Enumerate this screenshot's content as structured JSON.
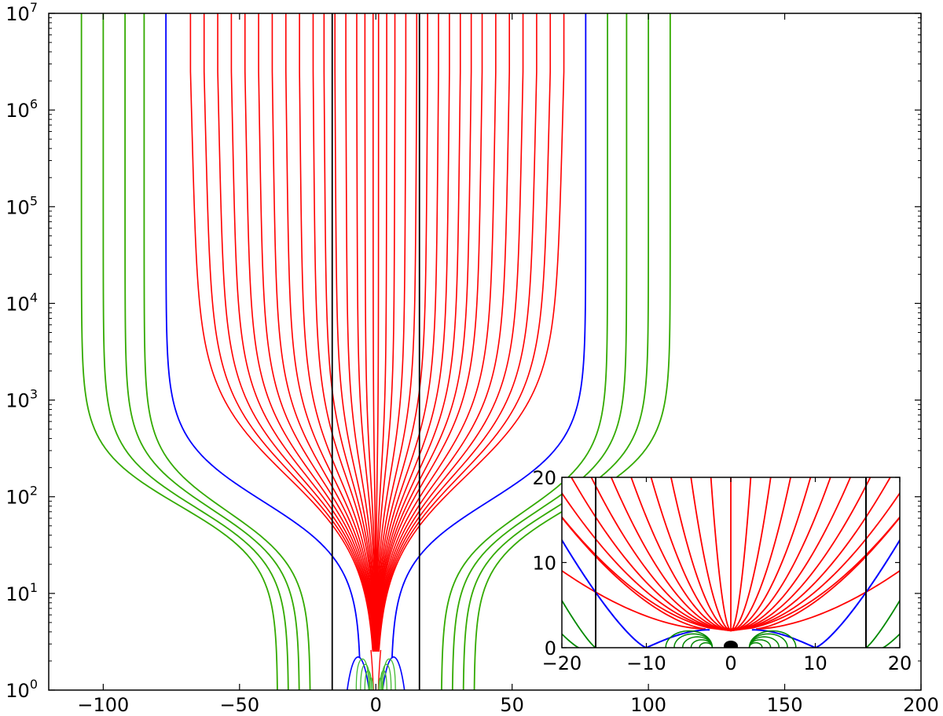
{
  "chart_data": [
    {
      "type": "line",
      "panel": "main",
      "title": "",
      "xlabel": "",
      "ylabel": "",
      "xlim": [
        -120,
        200
      ],
      "ylim": [
        1,
        10000000
      ],
      "yscale": "log",
      "grid": false,
      "legend": "none",
      "xticks": [
        -100,
        -50,
        0,
        50,
        100,
        150,
        200
      ],
      "xtick_labels": [
        "−100",
        "−50",
        "0",
        "50",
        "100",
        "150",
        "200"
      ],
      "yticks": [
        1,
        10,
        100,
        1000,
        10000,
        100000,
        1000000,
        10000000
      ],
      "ytick_labels": [
        {
          "base": "10",
          "exp": "0"
        },
        {
          "base": "10",
          "exp": "1"
        },
        {
          "base": "10",
          "exp": "2"
        },
        {
          "base": "10",
          "exp": "3"
        },
        {
          "base": "10",
          "exp": "4"
        },
        {
          "base": "10",
          "exp": "5"
        },
        {
          "base": "10",
          "exp": "6"
        },
        {
          "base": "10",
          "exp": "7"
        }
      ],
      "series": [
        {
          "group": "red",
          "color": "#ff0000",
          "x_top": [
            -68,
            -63,
            -58,
            -53,
            -48,
            -43,
            -38,
            -33,
            -28,
            -23,
            -19,
            -15,
            -11,
            -7,
            -4,
            -1,
            1,
            4,
            7,
            11,
            15,
            19,
            23,
            27,
            31,
            35,
            39,
            44,
            49,
            54,
            59,
            64,
            69
          ],
          "converge_x": 0,
          "converge_y": 2.5
        },
        {
          "group": "blue",
          "color": "#0000ff",
          "x_top": [
            -77,
            77
          ],
          "x_bottom": [
            -5.5,
            5.5
          ]
        },
        {
          "group": "green",
          "color": "#33aa00",
          "x_top": [
            -108,
            -100,
            -92,
            -85,
            85,
            92,
            100,
            108
          ],
          "x_bottom": [
            -36,
            -32,
            -28,
            -24,
            24,
            28,
            32,
            36
          ]
        },
        {
          "group": "vertical",
          "color": "#000000",
          "x": [
            -16,
            16
          ]
        }
      ]
    },
    {
      "type": "line",
      "panel": "inset",
      "title": "",
      "xlabel": "",
      "ylabel": "",
      "xlim": [
        -20,
        20
      ],
      "ylim": [
        0,
        20
      ],
      "grid": false,
      "legend": "none",
      "xticks": [
        -20,
        -10,
        0,
        10,
        20
      ],
      "xtick_labels": [
        "−20",
        "−10",
        "0",
        "10",
        "20"
      ],
      "yticks": [
        0,
        10,
        20
      ],
      "ytick_labels": [
        "0",
        "10",
        "20"
      ],
      "series": [
        {
          "group": "red",
          "color": "#ff0000",
          "x_at_top": [
            -20,
            -18,
            -16,
            -14,
            -12,
            -10,
            -8,
            -6,
            -4,
            -2,
            0,
            2,
            4,
            6,
            8,
            10,
            12,
            14,
            16,
            18,
            20
          ],
          "origin": [
            0,
            2
          ]
        },
        {
          "group": "blue",
          "color": "#0000ff",
          "crosses": [
            -10,
            10
          ]
        },
        {
          "group": "green",
          "color": "#008800",
          "note_x": [
            -20,
            20
          ]
        },
        {
          "group": "vertical",
          "color": "#000000",
          "x": [
            -16,
            16
          ]
        }
      ]
    }
  ]
}
